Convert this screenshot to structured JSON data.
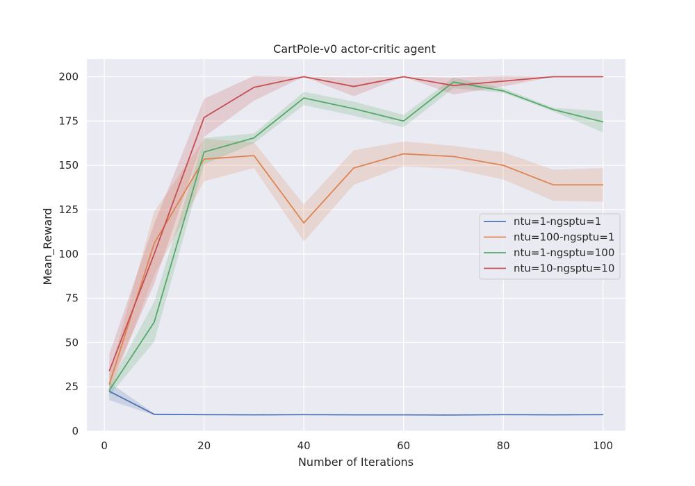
{
  "chart_data": {
    "type": "line",
    "title": "CartPole-v0 actor-critic agent",
    "xlabel": "Number of Iterations",
    "ylabel": "Mean_Reward",
    "xlim": [
      -3.5,
      104.5
    ],
    "ylim": [
      0,
      210
    ],
    "xticks": [
      0,
      20,
      40,
      60,
      80,
      100
    ],
    "yticks": [
      0,
      25,
      50,
      75,
      100,
      125,
      150,
      175,
      200
    ],
    "grid": true,
    "legend_position": "center-right",
    "x": [
      1,
      10,
      20,
      30,
      40,
      50,
      60,
      70,
      80,
      90,
      100
    ],
    "series": [
      {
        "name": "ntu=1-ngsptu=1",
        "color": "#4c72b0",
        "values": [
          22.5,
          9.5,
          9.3,
          9.2,
          9.3,
          9.2,
          9.2,
          9.1,
          9.3,
          9.2,
          9.3
        ],
        "lower": [
          17.5,
          9.0,
          9.0,
          9.0,
          9.0,
          9.0,
          9.0,
          8.9,
          9.0,
          9.0,
          9.0
        ],
        "upper": [
          27.5,
          10.0,
          9.6,
          9.5,
          9.6,
          9.5,
          9.5,
          9.4,
          9.6,
          9.5,
          9.6
        ]
      },
      {
        "name": "ntu=100-ngsptu=1",
        "color": "#dd8452",
        "values": [
          26.5,
          106.0,
          153.5,
          155.5,
          117.5,
          148.5,
          156.5,
          155.0,
          150.0,
          139.0,
          139.0
        ],
        "lower": [
          21.0,
          88.0,
          141.0,
          148.5,
          107.0,
          139.0,
          149.5,
          148.0,
          142.0,
          130.0,
          129.5
        ],
        "upper": [
          32.0,
          124.0,
          165.0,
          163.0,
          128.0,
          158.5,
          163.5,
          161.0,
          157.5,
          147.5,
          148.5
        ]
      },
      {
        "name": "ntu=1-ngsptu=100",
        "color": "#55a868",
        "values": [
          23.0,
          61.5,
          157.5,
          165.5,
          188.0,
          182.0,
          175.0,
          197.0,
          192.0,
          181.5,
          174.5
        ],
        "lower": [
          20.0,
          50.5,
          150.5,
          162.5,
          184.0,
          178.0,
          171.5,
          193.5,
          191.0,
          180.5,
          168.5
        ],
        "upper": [
          26.0,
          73.0,
          165.5,
          168.0,
          191.5,
          186.0,
          178.5,
          199.5,
          193.5,
          182.5,
          180.5
        ]
      },
      {
        "name": "ntu=10-ngsptu=10",
        "color": "#c44e52",
        "values": [
          34.0,
          100.0,
          177.0,
          194.0,
          200.0,
          194.5,
          200.0,
          195.0,
          197.5,
          200.0,
          200.0
        ],
        "lower": [
          25.5,
          83.0,
          166.0,
          186.5,
          200.0,
          189.0,
          200.0,
          190.0,
          194.5,
          200.0,
          200.0
        ],
        "upper": [
          43.5,
          117.0,
          187.5,
          200.5,
          200.0,
          199.5,
          200.0,
          199.5,
          200.5,
          200.0,
          200.0
        ]
      }
    ]
  }
}
